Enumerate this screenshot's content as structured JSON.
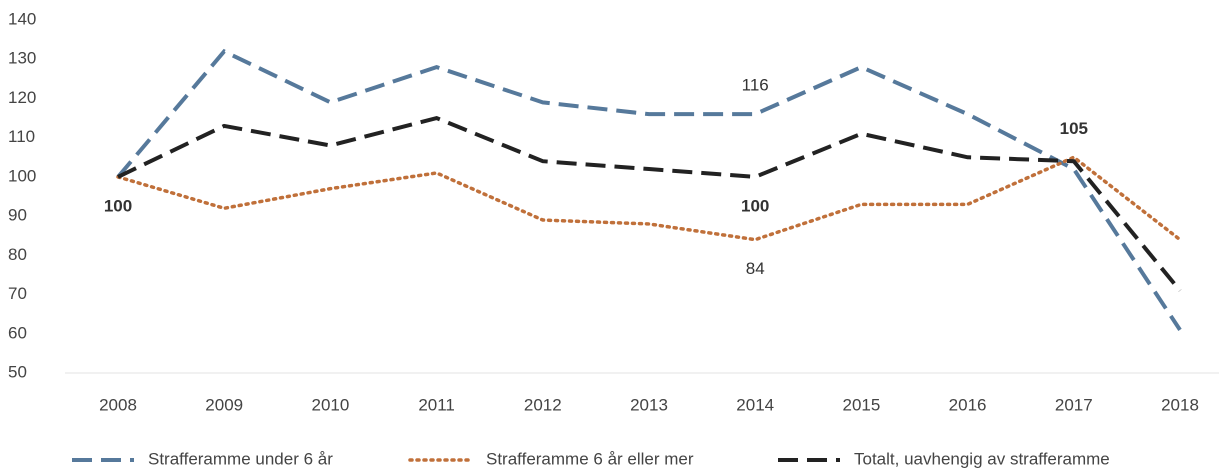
{
  "chart_data": {
    "type": "line",
    "categories": [
      "2008",
      "2009",
      "2010",
      "2011",
      "2012",
      "2013",
      "2014",
      "2015",
      "2016",
      "2017",
      "2018"
    ],
    "series": [
      {
        "name": "Strafferamme under 6 år",
        "color": "#56799b",
        "dash": "dashed",
        "values": [
          100,
          132,
          119,
          128,
          119,
          116,
          116,
          128,
          116,
          102,
          61
        ]
      },
      {
        "name": "Strafferamme 6 år eller mer",
        "color": "#c0703a",
        "dash": "dotted",
        "values": [
          100,
          92,
          97,
          101,
          89,
          88,
          84,
          93,
          93,
          105,
          84
        ]
      },
      {
        "name": "Totalt, uavhengig av strafferamme",
        "color": "#222222",
        "dash": "dashed",
        "values": [
          100,
          113,
          108,
          115,
          104,
          102,
          100,
          111,
          105,
          104,
          71
        ]
      }
    ],
    "annotations": [
      {
        "x": "2008",
        "y": 100,
        "text": "100",
        "bold": true,
        "position": "below"
      },
      {
        "x": "2014",
        "y": 116,
        "text": "116",
        "bold": false,
        "position": "above"
      },
      {
        "x": "2014",
        "y": 100,
        "text": "100",
        "bold": true,
        "position": "below"
      },
      {
        "x": "2014",
        "y": 84,
        "text": "84",
        "bold": false,
        "position": "below"
      },
      {
        "x": "2017",
        "y": 105,
        "text": "105",
        "bold": true,
        "position": "above"
      }
    ],
    "ylim": [
      50,
      140
    ],
    "yticks": [
      50,
      60,
      70,
      80,
      90,
      100,
      110,
      120,
      130,
      140
    ],
    "grid": false,
    "legend": "bottom"
  }
}
